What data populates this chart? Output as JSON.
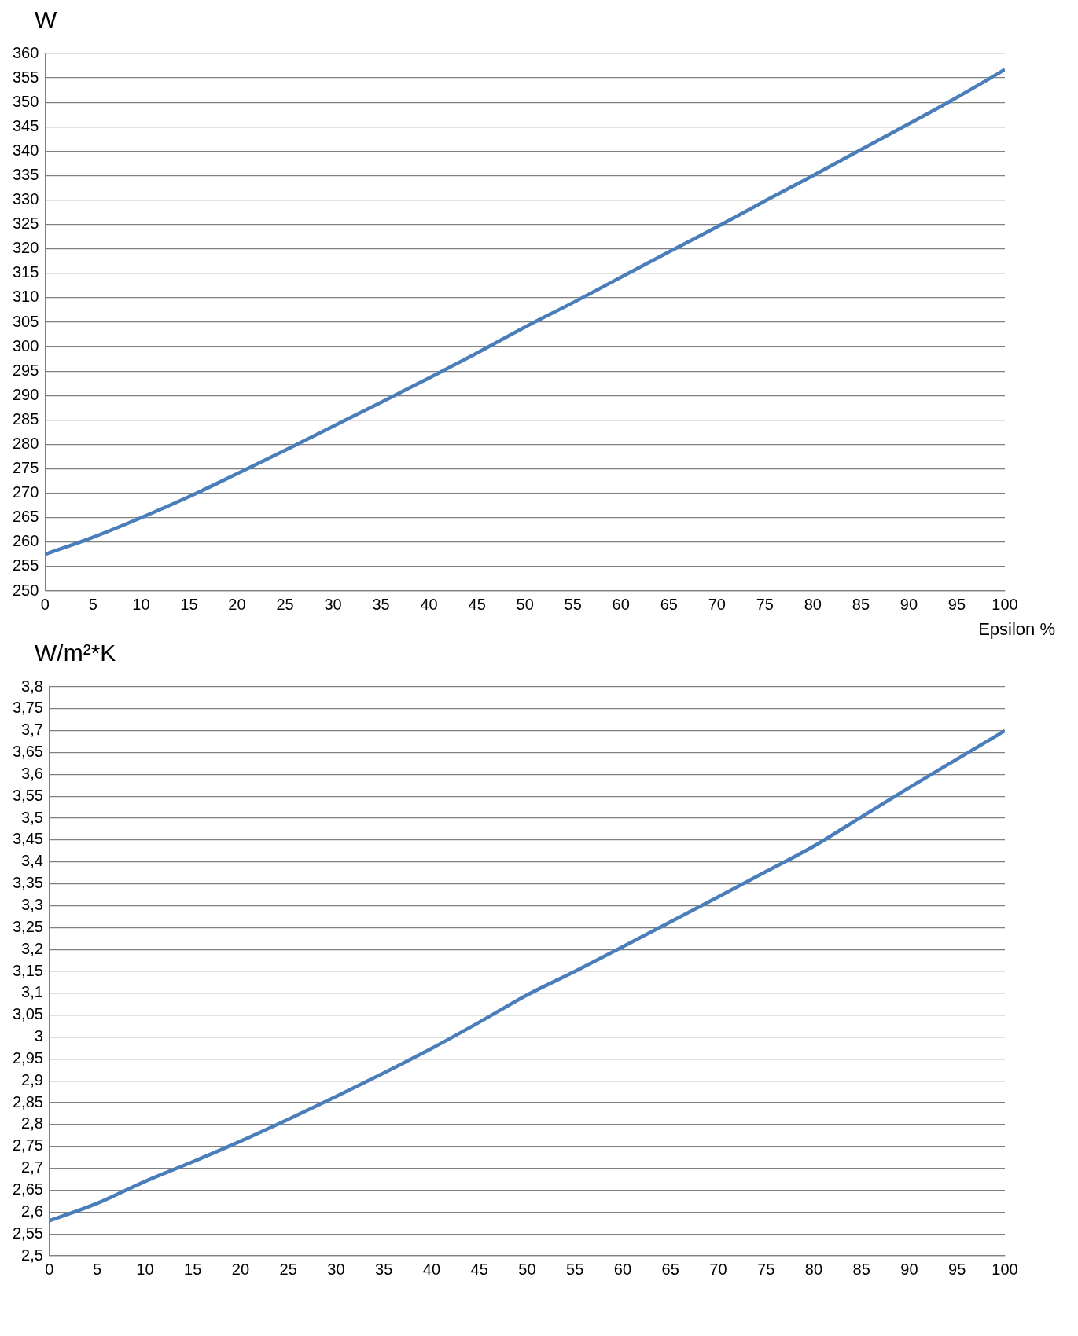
{
  "chart_data": [
    {
      "type": "line",
      "ylabel": "W",
      "xlabel": "Epsilon %",
      "x": [
        0,
        5,
        10,
        15,
        20,
        25,
        30,
        35,
        40,
        45,
        50,
        55,
        60,
        65,
        70,
        75,
        80,
        85,
        90,
        95,
        100
      ],
      "values": [
        257.5,
        261,
        265,
        269.3,
        274,
        278.8,
        283.7,
        288.6,
        293.6,
        298.7,
        304,
        309,
        314.2,
        319.4,
        324.5,
        329.8,
        335,
        340.3,
        345.6,
        351,
        356.7
      ],
      "color": "#4a7ebb",
      "xlim": [
        0,
        100
      ],
      "xticks": [
        0,
        5,
        10,
        15,
        20,
        25,
        30,
        35,
        40,
        45,
        50,
        55,
        60,
        65,
        70,
        75,
        80,
        85,
        90,
        95,
        100
      ],
      "ylim": [
        250,
        360
      ],
      "yticks": [
        250,
        255,
        260,
        265,
        270,
        275,
        280,
        285,
        290,
        295,
        300,
        305,
        310,
        315,
        320,
        325,
        330,
        335,
        340,
        345,
        350,
        355,
        360
      ],
      "grid": "y",
      "legend": false,
      "marker": "none"
    },
    {
      "type": "line",
      "ylabel": "W/m²*K",
      "x": [
        0,
        5,
        10,
        15,
        20,
        25,
        30,
        35,
        40,
        45,
        50,
        55,
        60,
        65,
        70,
        75,
        80,
        85,
        90,
        95,
        100
      ],
      "values": [
        2.58,
        2.62,
        2.67,
        2.715,
        2.762,
        2.812,
        2.864,
        2.918,
        2.974,
        3.034,
        3.096,
        3.15,
        3.206,
        3.263,
        3.32,
        3.378,
        3.436,
        3.503,
        3.57,
        3.635,
        3.7
      ],
      "color": "#4a7ebb",
      "xlim": [
        0,
        100
      ],
      "xticks": [
        0,
        5,
        10,
        15,
        20,
        25,
        30,
        35,
        40,
        45,
        50,
        55,
        60,
        65,
        70,
        75,
        80,
        85,
        90,
        95,
        100
      ],
      "ylim": [
        2.5,
        3.8
      ],
      "yticks": [
        {
          "value": 2.5,
          "label": "2,5"
        },
        {
          "value": 2.55,
          "label": "2,55"
        },
        {
          "value": 2.6,
          "label": "2,6"
        },
        {
          "value": 2.65,
          "label": "2,65"
        },
        {
          "value": 2.7,
          "label": "2,7"
        },
        {
          "value": 2.75,
          "label": "2,75"
        },
        {
          "value": 2.8,
          "label": "2,8"
        },
        {
          "value": 2.85,
          "label": "2,85"
        },
        {
          "value": 2.9,
          "label": "2,9"
        },
        {
          "value": 2.95,
          "label": "2,95"
        },
        {
          "value": 3,
          "label": "3"
        },
        {
          "value": 3.05,
          "label": "3,05"
        },
        {
          "value": 3.1,
          "label": "3,1"
        },
        {
          "value": 3.15,
          "label": "3,15"
        },
        {
          "value": 3.2,
          "label": "3,2"
        },
        {
          "value": 3.25,
          "label": "3,25"
        },
        {
          "value": 3.3,
          "label": "3,3"
        },
        {
          "value": 3.35,
          "label": "3,35"
        },
        {
          "value": 3.4,
          "label": "3,4"
        },
        {
          "value": 3.45,
          "label": "3,45"
        },
        {
          "value": 3.5,
          "label": "3,5"
        },
        {
          "value": 3.55,
          "label": "3,55"
        },
        {
          "value": 3.6,
          "label": "3,6"
        },
        {
          "value": 3.65,
          "label": "3,65"
        },
        {
          "value": 3.7,
          "label": "3,7"
        },
        {
          "value": 3.75,
          "label": "3,75"
        },
        {
          "value": 3.8,
          "label": "3,8"
        }
      ],
      "grid": "y",
      "legend": false,
      "marker": "none"
    }
  ]
}
